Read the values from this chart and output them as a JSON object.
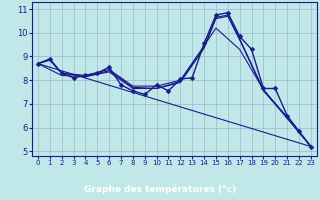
{
  "xlabel": "Graphe des températures (°c)",
  "xlim": [
    -0.5,
    23.5
  ],
  "ylim": [
    4.8,
    11.3
  ],
  "yticks": [
    5,
    6,
    7,
    8,
    9,
    10,
    11
  ],
  "xticks": [
    0,
    1,
    2,
    3,
    4,
    5,
    6,
    7,
    8,
    9,
    10,
    11,
    12,
    13,
    14,
    15,
    16,
    17,
    18,
    19,
    20,
    21,
    22,
    23
  ],
  "bg_color": "#c0e8e8",
  "grid_color": "#9ab8cc",
  "line_color": "#1a1a8c",
  "xlabel_bg": "#2222aa",
  "xlabel_fg": "#ffffff",
  "main_line": {
    "x": [
      0,
      1,
      2,
      3,
      4,
      5,
      6,
      7,
      8,
      9,
      10,
      11,
      12,
      13,
      14,
      15,
      16,
      17,
      18,
      19,
      20,
      21,
      22,
      23
    ],
    "y": [
      8.7,
      8.9,
      8.3,
      8.1,
      8.2,
      8.3,
      8.55,
      7.8,
      7.55,
      7.4,
      7.8,
      7.55,
      8.05,
      8.1,
      9.55,
      10.75,
      10.85,
      9.85,
      9.3,
      7.65,
      7.65,
      6.5,
      5.85,
      5.2
    ]
  },
  "extra_lines": [
    {
      "x": [
        0,
        23
      ],
      "y": [
        8.7,
        5.2
      ]
    },
    {
      "x": [
        0,
        1,
        2,
        4,
        6,
        8,
        10,
        12,
        14,
        15,
        17,
        19,
        23
      ],
      "y": [
        8.7,
        8.85,
        8.3,
        8.2,
        8.45,
        7.75,
        7.75,
        8.0,
        9.45,
        10.2,
        9.3,
        7.6,
        5.2
      ]
    },
    {
      "x": [
        0,
        1,
        2,
        4,
        6,
        8,
        10,
        12,
        14,
        15,
        16,
        17,
        19,
        21,
        23
      ],
      "y": [
        8.7,
        8.85,
        8.3,
        8.15,
        8.4,
        7.7,
        7.65,
        7.95,
        9.4,
        10.65,
        10.75,
        9.75,
        7.6,
        6.45,
        5.2
      ]
    },
    {
      "x": [
        0,
        2,
        4,
        6,
        8,
        10,
        12,
        14,
        15,
        16,
        17,
        19,
        21,
        23
      ],
      "y": [
        8.7,
        8.2,
        8.15,
        8.35,
        7.65,
        7.65,
        7.9,
        9.35,
        10.6,
        10.7,
        9.7,
        7.55,
        6.4,
        5.2
      ]
    }
  ]
}
